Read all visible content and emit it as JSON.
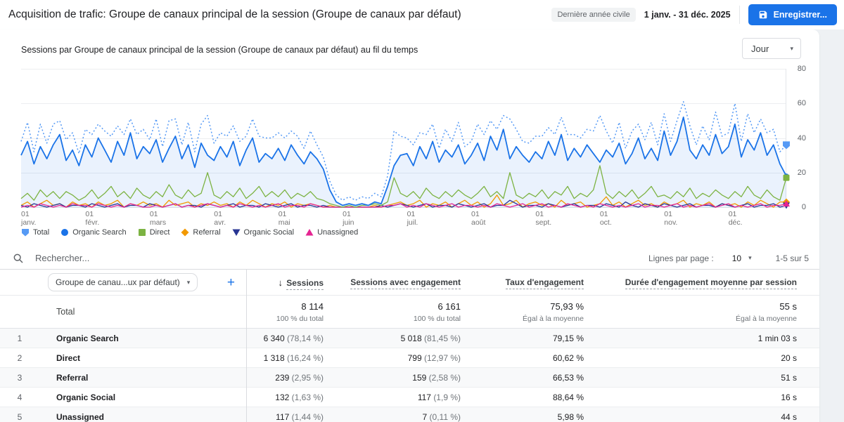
{
  "icons": {
    "caret": "▾",
    "sort_desc": "↓"
  },
  "header": {
    "title": "Acquisition de trafic: Groupe de canaux principal de la session (Groupe de canaux par défaut)",
    "date_preset": "Dernière année civile",
    "date_range": "1 janv. - 31 déc. 2025",
    "save_label": "Enregistrer..."
  },
  "chart": {
    "title": "Sessions par Groupe de canaux principal de la session (Groupe de canaux par défaut) au fil du temps",
    "interval": "Jour"
  },
  "chart_data": {
    "type": "line",
    "title": "Sessions par Groupe de canaux principal de la session (Groupe de canaux par défaut) au fil du temps",
    "grid": "horizontal",
    "legend_position": "bottom-left",
    "x_axis": {
      "unit": "day",
      "range": "1 janv. 2025 - 31 déc. 2025",
      "note": "daily values estimated from pixels, downsampled to 120 points",
      "tick_months": [
        {
          "day": "01",
          "month": "janv."
        },
        {
          "day": "01",
          "month": "févr."
        },
        {
          "day": "01",
          "month": "mars"
        },
        {
          "day": "01",
          "month": "avr."
        },
        {
          "day": "01",
          "month": "mai"
        },
        {
          "day": "01",
          "month": "juin"
        },
        {
          "day": "01",
          "month": "juil."
        },
        {
          "day": "01",
          "month": "août"
        },
        {
          "day": "01",
          "month": "sept."
        },
        {
          "day": "01",
          "month": "oct."
        },
        {
          "day": "01",
          "month": "nov."
        },
        {
          "day": "01",
          "month": "déc."
        }
      ]
    },
    "y_axis": {
      "min": 0,
      "max": 80,
      "ticks": [
        0,
        20,
        40,
        60,
        80
      ],
      "position": "right"
    },
    "series": [
      {
        "name": "Total",
        "color": "#569af5",
        "style": "dotted",
        "marker": "pentagon",
        "values": [
          38,
          49,
          32,
          48,
          37,
          48,
          50,
          39,
          43,
          31,
          45,
          42,
          48,
          44,
          41,
          47,
          42,
          51,
          42,
          45,
          39,
          51,
          35,
          50,
          51,
          36,
          49,
          32,
          48,
          53,
          37,
          43,
          41,
          47,
          38,
          41,
          51,
          41,
          40,
          40,
          43,
          40,
          44,
          41,
          34,
          44,
          36,
          29,
          15,
          7,
          4,
          6,
          4,
          6,
          5,
          8,
          6,
          18,
          44,
          41,
          40,
          36,
          43,
          42,
          48,
          34,
          45,
          38,
          49,
          35,
          38,
          48,
          42,
          50,
          45,
          53,
          51,
          45,
          38,
          37,
          41,
          41,
          46,
          42,
          52,
          42,
          42,
          40,
          45,
          44,
          53,
          44,
          37,
          49,
          34,
          44,
          48,
          39,
          49,
          36,
          54,
          38,
          50,
          61,
          47,
          36,
          47,
          39,
          55,
          41,
          43,
          60,
          38,
          54,
          43,
          51,
          43,
          45,
          32,
          36
        ]
      },
      {
        "name": "Organic Search",
        "color": "#1a73e8",
        "style": "solid",
        "marker": "circle",
        "area_fill": true,
        "values": [
          30,
          38,
          25,
          35,
          28,
          36,
          42,
          27,
          33,
          24,
          36,
          29,
          40,
          33,
          26,
          38,
          30,
          43,
          28,
          35,
          31,
          39,
          26,
          34,
          41,
          28,
          36,
          23,
          37,
          30,
          27,
          35,
          29,
          38,
          24,
          33,
          40,
          26,
          31,
          28,
          34,
          27,
          36,
          30,
          25,
          32,
          28,
          22,
          10,
          3,
          1,
          2,
          1,
          2,
          1,
          3,
          2,
          12,
          24,
          30,
          31,
          24,
          35,
          28,
          38,
          26,
          33,
          29,
          36,
          25,
          30,
          37,
          27,
          41,
          33,
          45,
          28,
          35,
          30,
          26,
          32,
          28,
          38,
          30,
          42,
          27,
          34,
          29,
          36,
          31,
          26,
          33,
          29,
          37,
          25,
          31,
          40,
          28,
          34,
          27,
          44,
          30,
          38,
          52,
          33,
          28,
          36,
          30,
          42,
          31,
          35,
          48,
          29,
          39,
          33,
          43,
          30,
          36,
          25,
          18
        ]
      },
      {
        "name": "Direct",
        "color": "#7cb342",
        "style": "solid",
        "marker": "square",
        "values": [
          5,
          8,
          4,
          10,
          6,
          9,
          5,
          9,
          7,
          4,
          6,
          10,
          5,
          8,
          12,
          6,
          9,
          5,
          11,
          7,
          5,
          9,
          6,
          13,
          7,
          5,
          10,
          6,
          8,
          20,
          7,
          5,
          9,
          6,
          11,
          5,
          8,
          12,
          6,
          9,
          6,
          10,
          5,
          8,
          6,
          9,
          5,
          4,
          2,
          1,
          0,
          1,
          0,
          1,
          1,
          2,
          1,
          3,
          17,
          8,
          6,
          9,
          5,
          11,
          7,
          5,
          9,
          6,
          10,
          7,
          5,
          8,
          12,
          6,
          9,
          5,
          20,
          7,
          5,
          8,
          6,
          10,
          5,
          9,
          7,
          12,
          5,
          8,
          6,
          10,
          24,
          8,
          5,
          9,
          6,
          10,
          5,
          8,
          12,
          6,
          7,
          5,
          9,
          6,
          11,
          5,
          8,
          6,
          10,
          7,
          5,
          9,
          6,
          12,
          7,
          5,
          10,
          6,
          4,
          17
        ]
      },
      {
        "name": "Referral",
        "color": "#f29900",
        "style": "solid",
        "marker": "diamond",
        "values": [
          1,
          3,
          0,
          2,
          4,
          1,
          2,
          0,
          3,
          1,
          2,
          0,
          3,
          1,
          2,
          4,
          0,
          2,
          1,
          3,
          1,
          2,
          0,
          4,
          1,
          2,
          3,
          0,
          2,
          1,
          3,
          1,
          2,
          0,
          3,
          1,
          4,
          2,
          0,
          2,
          1,
          3,
          0,
          2,
          1,
          2,
          1,
          0,
          1,
          0,
          0,
          0,
          0,
          0,
          0,
          1,
          0,
          1,
          2,
          3,
          1,
          2,
          4,
          0,
          2,
          1,
          3,
          0,
          2,
          4,
          1,
          3,
          0,
          2,
          7,
          1,
          2,
          4,
          0,
          2,
          3,
          1,
          2,
          0,
          4,
          1,
          2,
          3,
          0,
          1,
          2,
          6,
          1,
          3,
          0,
          2,
          4,
          1,
          2,
          0,
          3,
          1,
          2,
          4,
          0,
          2,
          1,
          3,
          0,
          2,
          1,
          2,
          0,
          3,
          1,
          4,
          2,
          0,
          3,
          3
        ]
      },
      {
        "name": "Organic Social",
        "color": "#283593",
        "style": "solid",
        "marker": "triangle-down",
        "values": [
          1,
          0,
          2,
          1,
          0,
          1,
          2,
          0,
          1,
          1,
          0,
          2,
          1,
          0,
          1,
          2,
          0,
          1,
          1,
          0,
          2,
          1,
          0,
          1,
          2,
          0,
          1,
          1,
          0,
          2,
          1,
          0,
          1,
          2,
          0,
          1,
          1,
          0,
          2,
          1,
          0,
          1,
          2,
          0,
          1,
          1,
          0,
          1,
          0,
          0,
          0,
          0,
          0,
          0,
          0,
          0,
          1,
          0,
          1,
          2,
          1,
          0,
          1,
          2,
          0,
          1,
          1,
          0,
          2,
          1,
          0,
          1,
          2,
          0,
          1,
          1,
          4,
          2,
          0,
          1,
          1,
          0,
          2,
          1,
          0,
          1,
          2,
          0,
          1,
          1,
          0,
          2,
          1,
          0,
          3,
          1,
          0,
          2,
          1,
          0,
          2,
          1,
          0,
          1,
          2,
          0,
          1,
          1,
          0,
          2,
          1,
          0,
          1,
          2,
          0,
          1,
          1,
          2,
          0,
          1
        ]
      },
      {
        "name": "Unassigned",
        "color": "#e52592",
        "style": "solid",
        "marker": "triangle-up",
        "values": [
          0,
          1,
          0,
          2,
          1,
          0,
          1,
          0,
          2,
          1,
          1,
          0,
          2,
          1,
          0,
          1,
          0,
          2,
          1,
          0,
          0,
          1,
          0,
          1,
          2,
          0,
          1,
          0,
          1,
          2,
          1,
          0,
          1,
          0,
          2,
          1,
          0,
          1,
          0,
          1,
          2,
          0,
          1,
          1,
          0,
          2,
          1,
          0,
          0,
          0,
          0,
          0,
          0,
          0,
          0,
          0,
          0,
          1,
          1,
          2,
          0,
          1,
          0,
          2,
          1,
          0,
          1,
          2,
          0,
          1,
          1,
          0,
          1,
          0,
          2,
          1,
          0,
          1,
          2,
          0,
          1,
          2,
          0,
          1,
          0,
          2,
          1,
          0,
          1,
          0,
          2,
          1,
          0,
          1,
          0,
          1,
          2,
          0,
          1,
          1,
          0,
          1,
          2,
          0,
          1,
          0,
          1,
          2,
          0,
          1,
          2,
          0,
          1,
          0,
          1,
          2,
          0,
          1,
          1,
          2
        ]
      }
    ]
  },
  "table": {
    "search_placeholder": "Rechercher...",
    "rows_per_page_label": "Lignes par page :",
    "rows_per_page_value": "10",
    "pagination": "1-5 sur 5",
    "dimension_selector": "Groupe de canau...ux par défaut)",
    "add_label": "+",
    "columns": [
      "Sessions",
      "Sessions avec engagement",
      "Taux d'engagement",
      "Durée d'engagement moyenne par session"
    ],
    "total_row": {
      "label": "Total",
      "cells": [
        {
          "main": "8 114",
          "sub": "100 % du total"
        },
        {
          "main": "6 161",
          "sub": "100 % du total"
        },
        {
          "main": "75,93 %",
          "sub": "Égal à la moyenne"
        },
        {
          "main": "55 s",
          "sub": "Égal à la moyenne"
        }
      ]
    },
    "rows": [
      {
        "num": "1",
        "channel": "Organic Search",
        "sessions": "6 340",
        "sessions_pct": "(78,14 %)",
        "engaged": "5 018",
        "engaged_pct": "(81,45 %)",
        "rate": "79,15 %",
        "duration": "1 min 03 s"
      },
      {
        "num": "2",
        "channel": "Direct",
        "sessions": "1 318",
        "sessions_pct": "(16,24 %)",
        "engaged": "799",
        "engaged_pct": "(12,97 %)",
        "rate": "60,62 %",
        "duration": "20 s"
      },
      {
        "num": "3",
        "channel": "Referral",
        "sessions": "239",
        "sessions_pct": "(2,95 %)",
        "engaged": "159",
        "engaged_pct": "(2,58 %)",
        "rate": "66,53 %",
        "duration": "51 s"
      },
      {
        "num": "4",
        "channel": "Organic Social",
        "sessions": "132",
        "sessions_pct": "(1,63 %)",
        "engaged": "117",
        "engaged_pct": "(1,9 %)",
        "rate": "88,64 %",
        "duration": "16 s"
      },
      {
        "num": "5",
        "channel": "Unassigned",
        "sessions": "117",
        "sessions_pct": "(1,44 %)",
        "engaged": "7",
        "engaged_pct": "(0,11 %)",
        "rate": "5,98 %",
        "duration": "44 s"
      }
    ]
  }
}
